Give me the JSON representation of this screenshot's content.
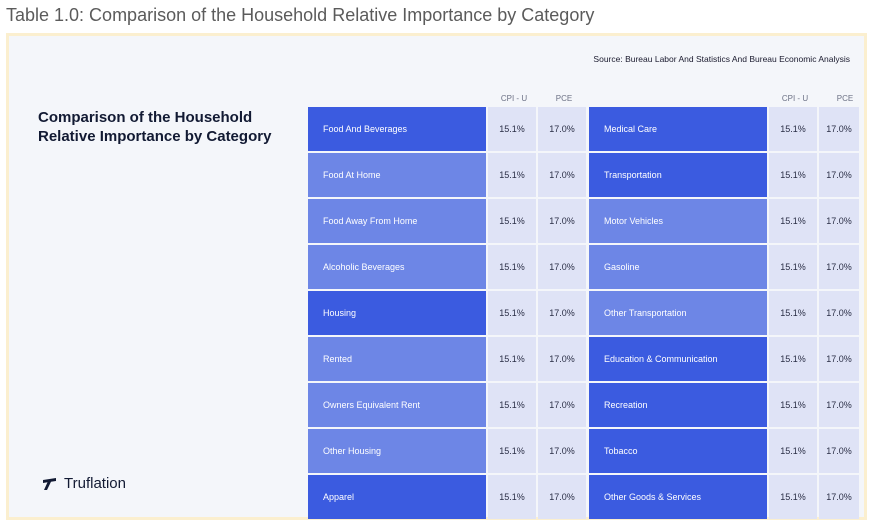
{
  "caption": "Table 1.0: Comparison of the Household Relative Importance by Category",
  "source": "Source: Bureau Labor And Statistics And Bureau Economic Analysis",
  "panel_title": "Comparison of the Household Relative Importance by Category",
  "logo": {
    "text": "Truflation",
    "icon": "truflation-logo-icon"
  },
  "headers": {
    "cpi": "CPI - U",
    "pce": "PCE"
  },
  "colors": {
    "dark_cell": "#3b5be0",
    "light_cell": "#6d86e6",
    "value_cell": "#dfe3f6"
  },
  "rows": [
    {
      "left": {
        "name": "Food And Beverages",
        "cpi": "15.1%",
        "pce": "17.0%",
        "shade": "dark"
      },
      "right": {
        "name": "Medical Care",
        "cpi": "15.1%",
        "pce": "17.0%",
        "shade": "dark"
      }
    },
    {
      "left": {
        "name": "Food At Home",
        "cpi": "15.1%",
        "pce": "17.0%",
        "shade": "light"
      },
      "right": {
        "name": "Transportation",
        "cpi": "15.1%",
        "pce": "17.0%",
        "shade": "dark"
      }
    },
    {
      "left": {
        "name": "Food Away From Home",
        "cpi": "15.1%",
        "pce": "17.0%",
        "shade": "light"
      },
      "right": {
        "name": "Motor Vehicles",
        "cpi": "15.1%",
        "pce": "17.0%",
        "shade": "light"
      }
    },
    {
      "left": {
        "name": "Alcoholic Beverages",
        "cpi": "15.1%",
        "pce": "17.0%",
        "shade": "light"
      },
      "right": {
        "name": "Gasoline",
        "cpi": "15.1%",
        "pce": "17.0%",
        "shade": "light"
      }
    },
    {
      "left": {
        "name": "Housing",
        "cpi": "15.1%",
        "pce": "17.0%",
        "shade": "dark"
      },
      "right": {
        "name": "Other Transportation",
        "cpi": "15.1%",
        "pce": "17.0%",
        "shade": "light"
      }
    },
    {
      "left": {
        "name": "Rented",
        "cpi": "15.1%",
        "pce": "17.0%",
        "shade": "light"
      },
      "right": {
        "name": "Education & Communication",
        "cpi": "15.1%",
        "pce": "17.0%",
        "shade": "dark"
      }
    },
    {
      "left": {
        "name": "Owners Equivalent Rent",
        "cpi": "15.1%",
        "pce": "17.0%",
        "shade": "light"
      },
      "right": {
        "name": "Recreation",
        "cpi": "15.1%",
        "pce": "17.0%",
        "shade": "dark"
      }
    },
    {
      "left": {
        "name": "Other Housing",
        "cpi": "15.1%",
        "pce": "17.0%",
        "shade": "light"
      },
      "right": {
        "name": "Tobacco",
        "cpi": "15.1%",
        "pce": "17.0%",
        "shade": "dark"
      }
    },
    {
      "left": {
        "name": "Apparel",
        "cpi": "15.1%",
        "pce": "17.0%",
        "shade": "dark"
      },
      "right": {
        "name": "Other Goods & Services",
        "cpi": "15.1%",
        "pce": "17.0%",
        "shade": "dark"
      }
    }
  ]
}
